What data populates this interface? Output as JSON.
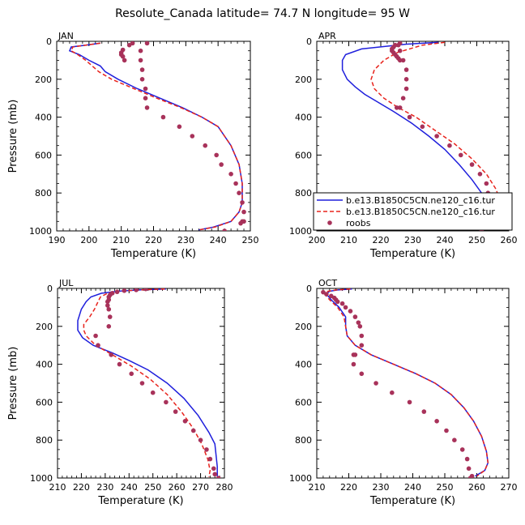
{
  "title": "Resolute_Canada   latitude= 74.7 N longitude= 95 W",
  "colors": {
    "model1": "#1f1fdc",
    "model2": "#e8231c",
    "obs": "#a8325a",
    "axis": "#000000"
  },
  "legend": {
    "placement": "bottom-right of APR panel",
    "entries": [
      "b.e13.B1850C5CN.ne120_c16.tur",
      "b.e13.B1850C5CN.ne120_c16.tur",
      "roobs"
    ]
  },
  "chart_data": [
    {
      "type": "line",
      "panel": "JAN",
      "xlabel": "Temperature (K)",
      "ylabel": "Pressure (mb)",
      "xlim": [
        190,
        250
      ],
      "ylim": [
        1000,
        0
      ],
      "xticks": [
        190,
        200,
        210,
        220,
        230,
        240,
        250
      ],
      "yticks": [
        0,
        200,
        400,
        600,
        800,
        1000
      ],
      "series": [
        {
          "name": "b.e13.B1850C5CN.ne120_c16.tur",
          "style": "solid",
          "color": "#1f1fdc",
          "x": [
            203.5,
            199,
            194.5,
            194,
            197,
            200,
            203.5,
            205,
            209,
            215,
            222,
            229,
            235,
            240,
            244,
            246.5,
            247.5,
            247.5,
            246.5,
            244,
            238.5,
            234
          ],
          "y": [
            10,
            20,
            30,
            50,
            70,
            100,
            130,
            160,
            200,
            250,
            300,
            350,
            400,
            450,
            550,
            650,
            750,
            850,
            900,
            950,
            980,
            995
          ]
        },
        {
          "name": "b.e13.B1850C5CN.ne120_c16.tur",
          "style": "dashed",
          "color": "#e8231c",
          "x": [
            203.5,
            199,
            195,
            194.5,
            196.5,
            199,
            201,
            203,
            207,
            214,
            221,
            228.5,
            235,
            240,
            244,
            246.5,
            247.5,
            247.5,
            246.5,
            244,
            239,
            234
          ],
          "y": [
            10,
            20,
            30,
            50,
            70,
            100,
            130,
            160,
            200,
            250,
            300,
            350,
            400,
            450,
            550,
            650,
            750,
            850,
            900,
            950,
            980,
            995
          ]
        },
        {
          "name": "roobs",
          "style": "points",
          "color": "#a8325a",
          "x": [
            213.5,
            212.5,
            210.5,
            210,
            210,
            210.5,
            211,
            218,
            216,
            216,
            216.5,
            216.5,
            217.5,
            217.5,
            218,
            223,
            228,
            232,
            236,
            239.5,
            241,
            244,
            245.5,
            246.5,
            247.5,
            248,
            248,
            247.5,
            247,
            242
          ],
          "y": [
            10,
            20,
            45,
            60,
            70,
            80,
            100,
            10,
            50,
            100,
            150,
            200,
            250,
            300,
            350,
            400,
            450,
            500,
            550,
            600,
            650,
            700,
            750,
            800,
            850,
            900,
            950,
            950,
            960,
            1000
          ]
        }
      ]
    },
    {
      "type": "line",
      "panel": "APR",
      "xlabel": "Temperature (K)",
      "ylabel": "",
      "xlim": [
        200,
        260
      ],
      "ylim": [
        1000,
        0
      ],
      "xticks": [
        200,
        210,
        220,
        230,
        240,
        250,
        260
      ],
      "yticks": [
        0,
        200,
        400,
        600,
        800,
        1000
      ],
      "series": [
        {
          "name": "b.e13.B1850C5CN.ne120_c16.tur",
          "style": "solid",
          "color": "#1f1fdc",
          "x": [
            238,
            228,
            214,
            209,
            208,
            208,
            209.5,
            212,
            215,
            219,
            224,
            229.5,
            235,
            240,
            244.5,
            248.5,
            251.5,
            253.5,
            254.5,
            253.5,
            250,
            246
          ],
          "y": [
            5,
            15,
            40,
            70,
            100,
            150,
            200,
            240,
            280,
            320,
            370,
            430,
            500,
            570,
            650,
            730,
            800,
            870,
            920,
            960,
            985,
            995
          ]
        },
        {
          "name": "b.e13.B1850C5CN.ne120_c16.tur",
          "style": "dashed",
          "color": "#e8231c",
          "x": [
            240,
            233,
            225,
            221,
            218,
            217,
            218,
            221,
            225.5,
            231,
            237,
            243,
            248.5,
            253,
            256,
            257.5,
            257.5,
            256.5,
            253.5,
            250.5
          ],
          "y": [
            5,
            20,
            60,
            100,
            150,
            200,
            250,
            300,
            350,
            400,
            470,
            540,
            620,
            700,
            780,
            850,
            900,
            940,
            975,
            995
          ]
        },
        {
          "name": "roobs",
          "style": "points",
          "color": "#a8325a",
          "x": [
            224.5,
            224,
            223.5,
            223.5,
            224,
            224.5,
            225,
            225.5,
            226,
            226,
            225.5,
            226,
            227,
            228,
            228,
            228,
            227,
            226,
            225,
            229,
            233,
            237.5,
            241.5,
            245,
            248.5,
            251,
            253,
            253.5,
            254.5,
            253.5,
            251.5
          ],
          "y": [
            20,
            30,
            40,
            50,
            60,
            70,
            80,
            90,
            100,
            10,
            20,
            50,
            100,
            150,
            200,
            250,
            300,
            350,
            350,
            400,
            450,
            500,
            550,
            600,
            650,
            700,
            750,
            800,
            850,
            900,
            1000
          ]
        }
      ]
    },
    {
      "type": "line",
      "panel": "JUL",
      "xlabel": "Temperature (K)",
      "ylabel": "Pressure (mb)",
      "xlim": [
        210,
        280
      ],
      "ylim": [
        1000,
        0
      ],
      "xticks": [
        210,
        220,
        230,
        240,
        250,
        260,
        270,
        280
      ],
      "yticks": [
        0,
        200,
        400,
        600,
        800,
        1000
      ],
      "series": [
        {
          "name": "b.e13.B1850C5CN.ne120_c16.tur",
          "style": "solid",
          "color": "#1f1fdc",
          "x": [
            255.5,
            244,
            235,
            228.5,
            224,
            222,
            220,
            218.5,
            218.5,
            220.5,
            225,
            233,
            240,
            248,
            256,
            263,
            269,
            273.5,
            276,
            276.5,
            277,
            277
          ],
          "y": [
            3,
            8,
            15,
            25,
            45,
            70,
            110,
            170,
            220,
            260,
            300,
            340,
            380,
            430,
            500,
            580,
            670,
            760,
            820,
            880,
            940,
            990
          ]
        },
        {
          "name": "b.e13.B1850C5CN.ne120_c16.tur",
          "style": "dashed",
          "color": "#e8231c",
          "x": [
            255,
            244,
            236,
            231,
            228,
            227,
            225.5,
            223.5,
            221,
            221,
            222,
            226,
            233,
            241,
            249,
            256,
            262,
            267,
            270.5,
            273,
            274,
            273.5
          ],
          "y": [
            3,
            8,
            15,
            25,
            45,
            70,
            110,
            150,
            190,
            220,
            250,
            300,
            350,
            410,
            480,
            560,
            650,
            740,
            820,
            900,
            960,
            995
          ]
        },
        {
          "name": "roobs",
          "style": "points",
          "color": "#a8325a",
          "x": [
            247,
            243,
            238,
            235,
            233,
            232,
            231.5,
            231.5,
            231,
            231,
            231.5,
            232,
            231.5,
            226,
            227,
            232.5,
            236,
            241,
            245.5,
            250,
            255.5,
            259.5,
            263.5,
            267,
            270,
            272.5,
            274,
            275.5,
            276,
            277.5
          ],
          "y": [
            3,
            8,
            12,
            18,
            25,
            35,
            45,
            60,
            70,
            90,
            110,
            150,
            200,
            250,
            300,
            350,
            400,
            450,
            500,
            550,
            600,
            650,
            700,
            750,
            800,
            850,
            900,
            950,
            980,
            1000
          ]
        }
      ]
    },
    {
      "type": "line",
      "panel": "OCT",
      "xlabel": "Temperature (K)",
      "ylabel": "",
      "xlim": [
        210,
        270
      ],
      "ylim": [
        1000,
        0
      ],
      "xticks": [
        210,
        220,
        230,
        240,
        250,
        260,
        270
      ],
      "yticks": [
        0,
        200,
        400,
        600,
        800,
        1000
      ],
      "series": [
        {
          "name": "b.e13.B1850C5CN.ne120_c16.tur",
          "style": "solid",
          "color": "#1f1fdc",
          "x": [
            221,
            216.5,
            214,
            213,
            214.5,
            217,
            219,
            219,
            219.5,
            222,
            227,
            234,
            241,
            247,
            252,
            256,
            259,
            261.5,
            263,
            263.5,
            262.5,
            259.5
          ],
          "y": [
            3,
            8,
            15,
            30,
            60,
            100,
            150,
            200,
            250,
            300,
            350,
            400,
            450,
            500,
            560,
            630,
            700,
            780,
            860,
            920,
            960,
            990
          ]
        },
        {
          "name": "b.e13.B1850C5CN.ne120_c16.tur",
          "style": "dashed",
          "color": "#e8231c",
          "x": [
            220.5,
            216,
            213.5,
            212.5,
            214,
            216.5,
            218.5,
            219,
            219.5,
            222,
            227,
            234,
            241,
            247,
            252,
            256,
            259,
            261.5,
            263,
            263.5,
            262.5,
            260
          ],
          "y": [
            3,
            8,
            15,
            30,
            60,
            100,
            150,
            200,
            250,
            300,
            350,
            400,
            450,
            500,
            560,
            630,
            700,
            780,
            860,
            920,
            960,
            990
          ]
        },
        {
          "name": "roobs",
          "style": "points",
          "color": "#a8325a",
          "x": [
            212,
            213,
            214.5,
            215.5,
            216,
            216.5,
            218,
            219,
            220.5,
            222,
            223,
            223.5,
            224,
            224,
            222,
            221.5,
            221.5,
            224,
            228.5,
            233.5,
            239,
            243.5,
            247.5,
            250.5,
            253,
            255.5,
            257,
            257.5,
            258,
            258.5
          ],
          "y": [
            20,
            30,
            40,
            50,
            60,
            70,
            80,
            100,
            120,
            150,
            180,
            200,
            250,
            300,
            350,
            350,
            400,
            450,
            500,
            550,
            600,
            650,
            700,
            750,
            800,
            850,
            900,
            950,
            1000,
            990
          ]
        }
      ]
    }
  ]
}
